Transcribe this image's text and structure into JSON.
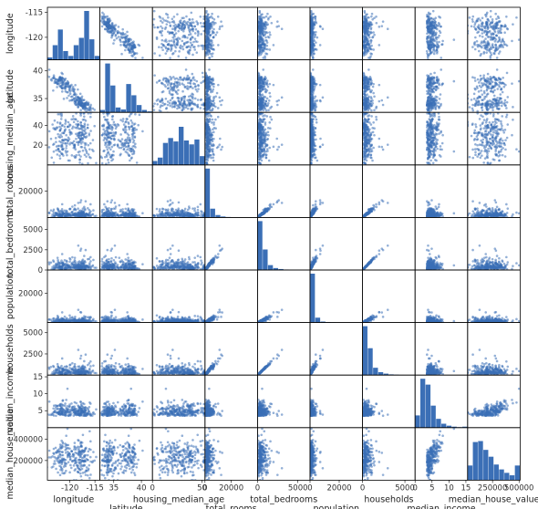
{
  "chart_data": {
    "type": "scatter",
    "title": "",
    "variables": [
      {
        "label": "longitude",
        "range": [
          -124.5,
          -114
        ],
        "left_ticks": [
          -115,
          -120
        ],
        "bottom_ticks": [
          "-120",
          "-115"
        ],
        "bottom_tick_values": [
          -120,
          -115
        ]
      },
      {
        "label": "latitude",
        "range": [
          32.5,
          42
        ],
        "left_ticks": [
          40,
          35
        ],
        "bottom_ticks": [
          "35",
          "40"
        ],
        "bottom_tick_values": [
          35,
          40
        ]
      },
      {
        "label": "housing_median_age",
        "range": [
          0,
          53
        ],
        "left_ticks": [
          40,
          20
        ],
        "bottom_ticks": [
          "0",
          "50"
        ],
        "bottom_tick_values": [
          0,
          50
        ]
      },
      {
        "label": "total_rooms",
        "range": [
          0,
          40000
        ],
        "left_ticks": [
          20000
        ],
        "bottom_ticks": [
          "0",
          "20000"
        ],
        "bottom_tick_values": [
          0,
          20000
        ]
      },
      {
        "label": "total_bedrooms",
        "range": [
          0,
          6500
        ],
        "left_ticks": [
          5000,
          2500,
          0
        ],
        "bottom_ticks": [
          "0",
          "5000"
        ],
        "bottom_tick_values": [
          0,
          5000
        ]
      },
      {
        "label": "population",
        "range": [
          0,
          36000
        ],
        "left_ticks": [
          20000
        ],
        "bottom_ticks": [
          "0",
          "20000"
        ],
        "bottom_tick_values": [
          0,
          20000
        ]
      },
      {
        "label": "households",
        "range": [
          0,
          6200
        ],
        "left_ticks": [
          5000,
          2500
        ],
        "bottom_ticks": [
          "0",
          "5000"
        ],
        "bottom_tick_values": [
          0,
          5000
        ]
      },
      {
        "label": "median_income",
        "range": [
          0,
          15.5
        ],
        "left_ticks": [
          15,
          10,
          5
        ],
        "bottom_ticks": [
          "0",
          "5",
          "10",
          "15"
        ],
        "bottom_tick_values": [
          0,
          5,
          10,
          15
        ]
      },
      {
        "label": "median_house_value",
        "range": [
          15000,
          510000
        ],
        "left_ticks": [
          400000,
          200000
        ],
        "bottom_ticks": [
          "250000",
          "500000"
        ],
        "bottom_tick_values": [
          250000,
          500000
        ]
      }
    ],
    "histograms": [
      [
        0.05,
        0.3,
        0.62,
        0.18,
        0.08,
        0.3,
        0.45,
        1.0,
        0.42,
        0.08
      ],
      [
        0.05,
        1.0,
        0.55,
        0.1,
        0.06,
        0.58,
        0.35,
        0.15,
        0.05,
        0.02
      ],
      [
        0.08,
        0.15,
        0.45,
        0.55,
        0.48,
        0.78,
        0.5,
        0.42,
        0.52,
        0.18
      ],
      [
        1.0,
        0.18,
        0.05,
        0.02,
        0.01,
        0.005,
        0.003,
        0.002,
        0.001,
        0.001
      ],
      [
        1.0,
        0.42,
        0.1,
        0.04,
        0.02,
        0.01,
        0.005,
        0.003,
        0.002,
        0.001
      ],
      [
        1.0,
        0.1,
        0.02,
        0.008,
        0.004,
        0.002,
        0.001,
        0.001,
        0.001,
        0.001
      ],
      [
        1.0,
        0.55,
        0.15,
        0.06,
        0.03,
        0.015,
        0.008,
        0.004,
        0.002,
        0.001
      ],
      [
        0.25,
        1.0,
        0.88,
        0.45,
        0.18,
        0.08,
        0.04,
        0.02,
        0.01,
        0.02
      ],
      [
        0.3,
        0.78,
        0.8,
        0.62,
        0.48,
        0.32,
        0.22,
        0.15,
        0.1,
        0.3
      ]
    ],
    "series_color": "#3b6fb6",
    "grid": false,
    "legend": "none",
    "note_points": "Each off-diagonal panel is a scatter of one variable against another; diagonal panels are histograms."
  }
}
